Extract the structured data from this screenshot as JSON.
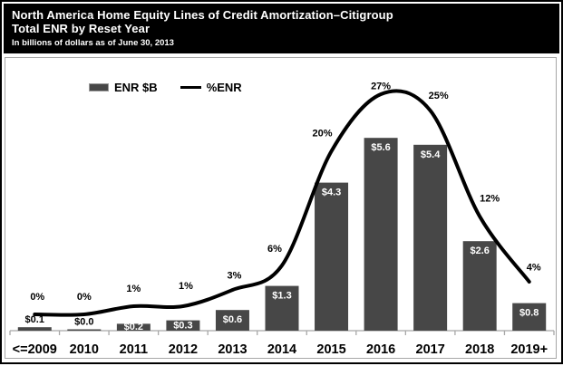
{
  "header": {
    "title_line1": "North America Home Equity Lines of Credit Amortization–Citigroup",
    "title_line2": "Total ENR by Reset Year",
    "subtitle": "In billions of dollars as of June 30, 2013"
  },
  "legend": {
    "bar_label": "ENR $B",
    "line_label": "%ENR"
  },
  "colors": {
    "header_bg": "#000000",
    "header_text": "#ffffff",
    "bar": "#474747",
    "line": "#000000",
    "axis": "#a8a8a8",
    "bar_label_inside": "#ffffff",
    "bar_label_outside": "#000000",
    "percent_label": "#000000",
    "category_label": "#000000"
  },
  "chart_data": {
    "type": "combo",
    "title": "North America Home Equity Lines of Credit Amortization–Citigroup — Total ENR by Reset Year",
    "subtitle": "In billions of dollars as of June 30, 2013",
    "categories": [
      "<=2009",
      "2010",
      "2011",
      "2012",
      "2013",
      "2014",
      "2015",
      "2016",
      "2017",
      "2018",
      "2019+"
    ],
    "series": [
      {
        "name": "ENR $B",
        "type": "bar",
        "unit": "$B",
        "values": [
          0.1,
          0.0,
          0.2,
          0.3,
          0.6,
          1.3,
          4.3,
          5.6,
          5.4,
          2.6,
          0.8
        ],
        "labels": [
          "$0.1",
          "$0.0",
          "$0.2",
          "$0.3",
          "$0.6",
          "$1.3",
          "$4.3",
          "$5.6",
          "$5.4",
          "$2.6",
          "$0.8"
        ]
      },
      {
        "name": "%ENR",
        "type": "line",
        "unit": "%",
        "values": [
          0,
          0,
          1,
          1,
          3,
          6,
          20,
          27,
          25,
          12,
          4
        ],
        "labels": [
          "0%",
          "0%",
          "1%",
          "1%",
          "3%",
          "6%",
          "20%",
          "27%",
          "25%",
          "12%",
          "4%"
        ]
      }
    ],
    "xlabel": "Reset Year",
    "ylabel": "",
    "grid": false,
    "legend_position": "top-left",
    "y_axis_visible": false,
    "data_labels": true
  }
}
